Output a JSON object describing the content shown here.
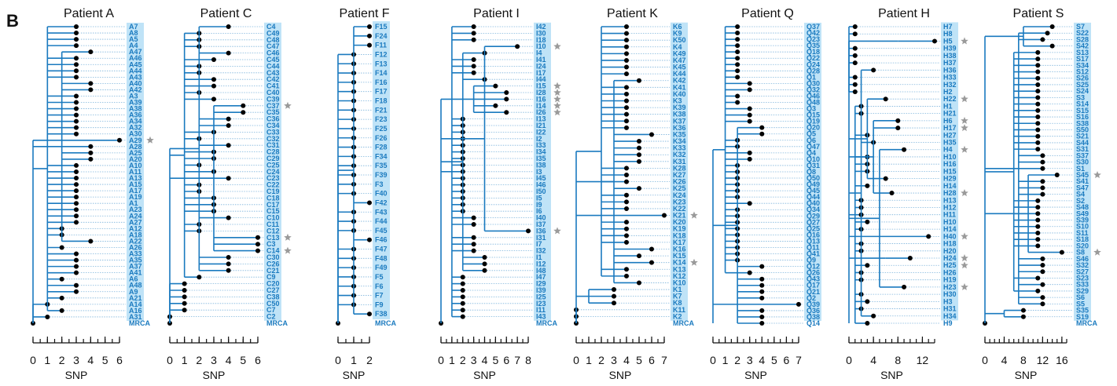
{
  "panel_label": "B",
  "colors": {
    "branch": "#1a7abf",
    "highlight": "#bfe3f7",
    "label": "#1a7abf",
    "star": "#9a9a9a",
    "node": "#000000"
  },
  "chart_data": [
    {
      "type": "tree",
      "title": "Patient A",
      "xlabel": "SNP",
      "xticks": [
        "0",
        "1",
        "2",
        "3",
        "4",
        "5",
        "6"
      ],
      "xlim": [
        0,
        6
      ],
      "leaves": [
        "A7",
        "A8",
        "A5",
        "A4",
        "A47",
        "A46",
        "A45",
        "A44",
        "A43",
        "A40",
        "A42",
        "A3",
        "A39",
        "A38",
        "A36",
        "A34",
        "A32",
        "A30",
        "A29",
        "A28",
        "A25",
        "A20",
        "A10",
        "A11",
        "A13",
        "A15",
        "A17",
        "A19",
        "A1",
        "A23",
        "A24",
        "A27",
        "A12",
        "A18",
        "A22",
        "A26",
        "A33",
        "A35",
        "A37",
        "A41",
        "A6",
        "A48",
        "A9",
        "A21",
        "A14",
        "A16",
        "A31",
        "MRCA"
      ],
      "snp": [
        3,
        3,
        3,
        3,
        4,
        3,
        3,
        3,
        3,
        4,
        4,
        3,
        3,
        3,
        3,
        3,
        3,
        3,
        6,
        4,
        4,
        4,
        3,
        3,
        3,
        3,
        3,
        3,
        3,
        3,
        3,
        3,
        2,
        2,
        4,
        2,
        3,
        3,
        3,
        3,
        2,
        3,
        3,
        2,
        1,
        2,
        1,
        0
      ],
      "stars": [
        "A29"
      ],
      "mrca": 0
    },
    {
      "type": "tree",
      "title": "Patient C",
      "xlabel": "SNP",
      "xticks": [
        "0",
        "1",
        "2",
        "3",
        "4",
        "5",
        "6"
      ],
      "xlim": [
        0,
        6
      ],
      "leaves": [
        "C4",
        "C49",
        "C48",
        "C47",
        "C46",
        "C45",
        "C44",
        "C43",
        "C42",
        "C41",
        "C40",
        "C39",
        "C37",
        "C35",
        "C36",
        "C34",
        "C33",
        "C32",
        "C31",
        "C28",
        "C29",
        "C25",
        "C24",
        "C23",
        "C22",
        "C19",
        "C18",
        "C17",
        "C15",
        "C10",
        "C11",
        "C12",
        "C13",
        "C3",
        "C14",
        "C30",
        "C26",
        "C21",
        "C9",
        "C20",
        "C27",
        "C38",
        "C50",
        "C7",
        "C2",
        "MRCA"
      ],
      "snp": [
        4,
        2,
        2,
        2,
        4,
        3,
        2,
        2,
        3,
        3,
        2,
        3,
        5,
        5,
        4,
        4,
        3,
        2,
        4,
        3,
        3,
        2,
        3,
        4,
        2,
        2,
        3,
        3,
        3,
        4,
        2,
        2,
        6,
        6,
        6,
        4,
        4,
        4,
        2,
        1,
        1,
        1,
        1,
        1,
        0,
        0
      ],
      "stars": [
        "C37",
        "C5",
        "C13",
        "C6",
        "C14"
      ],
      "mrca": 0
    },
    {
      "type": "tree",
      "title": "Patient F",
      "xlabel": "SNP",
      "xticks": [
        "0",
        "1",
        "2"
      ],
      "xlim": [
        0,
        2
      ],
      "leaves": [
        "F15",
        "F24",
        "F11",
        "F12",
        "F13",
        "F14",
        "F16",
        "F17",
        "F18",
        "F21",
        "F23",
        "F25",
        "F26",
        "F28",
        "F34",
        "F35",
        "F39",
        "F3",
        "F40",
        "F42",
        "F43",
        "F44",
        "F45",
        "F46",
        "F47",
        "F48",
        "F49",
        "F5",
        "F6",
        "F7",
        "F9",
        "F38",
        "MRCA"
      ],
      "snp": [
        2,
        2,
        2,
        1,
        1,
        1,
        1,
        1,
        1,
        1,
        1,
        1,
        1,
        1,
        1,
        1,
        1,
        1,
        1,
        2,
        1,
        1,
        1,
        2,
        1,
        1,
        1,
        1,
        1,
        1,
        1,
        2,
        0
      ],
      "stars": [],
      "mrca": 0
    },
    {
      "type": "tree",
      "title": "Patient I",
      "xlabel": "SNP",
      "xticks": [
        "0",
        "1",
        "2",
        "3",
        "4",
        "5",
        "6",
        "7",
        "8"
      ],
      "xlim": [
        0,
        8
      ],
      "leaves": [
        "I42",
        "I30",
        "I18",
        "I10",
        "I4",
        "I41",
        "I24",
        "I17",
        "I44",
        "I15",
        "I28",
        "I16",
        "I14",
        "I26",
        "I13",
        "I21",
        "I22",
        "I2",
        "I33",
        "I34",
        "I35",
        "I38",
        "I3",
        "I45",
        "I46",
        "I50",
        "I5",
        "I9",
        "I6",
        "I40",
        "I37",
        "I36",
        "I31",
        "I7",
        "I32",
        "I1",
        "I12",
        "I48",
        "I47",
        "I29",
        "I39",
        "I25",
        "I23",
        "I11",
        "I43",
        "MRCA"
      ],
      "snp": [
        3,
        3,
        3,
        7,
        4,
        3,
        3,
        3,
        4,
        5,
        6,
        6,
        5,
        6,
        2,
        2,
        2,
        2,
        2,
        2,
        2,
        2,
        2,
        2,
        2,
        2,
        2,
        2,
        2,
        3,
        3,
        8,
        3,
        3,
        3,
        4,
        4,
        4,
        2,
        2,
        2,
        2,
        2,
        2,
        2,
        0
      ],
      "stars": [
        "I10",
        "I15",
        "I28",
        "I16",
        "I14",
        "I26",
        "I36"
      ],
      "mrca": 0
    },
    {
      "type": "tree",
      "title": "Patient K",
      "xlabel": "SNP",
      "xticks": [
        "0",
        "1",
        "2",
        "3",
        "4",
        "5",
        "6",
        "7"
      ],
      "xlim": [
        0,
        7
      ],
      "leaves": [
        "K6",
        "K9",
        "K50",
        "K4",
        "K49",
        "K47",
        "K45",
        "K44",
        "K42",
        "K41",
        "K40",
        "K3",
        "K39",
        "K38",
        "K37",
        "K36",
        "K35",
        "K34",
        "K33",
        "K32",
        "K31",
        "K28",
        "K27",
        "K26",
        "K25",
        "K24",
        "K23",
        "K22",
        "K21",
        "K20",
        "K19",
        "K18",
        "K17",
        "K16",
        "K15",
        "K14",
        "K13",
        "K12",
        "K10",
        "K1",
        "K7",
        "K8",
        "K11",
        "K2",
        "MRCA"
      ],
      "snp": [
        4,
        4,
        4,
        4,
        4,
        4,
        4,
        4,
        5,
        4,
        4,
        4,
        4,
        4,
        4,
        4,
        6,
        5,
        5,
        5,
        5,
        4,
        4,
        4,
        5,
        4,
        4,
        4,
        7,
        4,
        4,
        4,
        4,
        6,
        5,
        6,
        4,
        4,
        5,
        3,
        3,
        3,
        0,
        0,
        0
      ],
      "stars": [
        "K21",
        "K14"
      ],
      "mrca": 0
    },
    {
      "type": "tree",
      "title": "Patient Q",
      "xlabel": "SNP",
      "xticks": [
        "0",
        "1",
        "2",
        "3",
        "4",
        "5",
        "6",
        "7"
      ],
      "xlim": [
        0,
        7
      ],
      "leaves": [
        "Q37",
        "Q42",
        "Q23",
        "Q35",
        "Q18",
        "Q22",
        "Q24",
        "Q28",
        "Q1",
        "Q30",
        "Q32",
        "Q46",
        "Q48",
        "Q3",
        "Q15",
        "Q19",
        "Q20",
        "Q5",
        "Q6",
        "Q47",
        "Q4",
        "Q10",
        "Q31",
        "Q8",
        "Q50",
        "Q49",
        "Q45",
        "Q44",
        "Q40",
        "Q34",
        "Q29",
        "Q27",
        "Q25",
        "Q16",
        "Q13",
        "Q11",
        "Q41",
        "Q9",
        "Q12",
        "Q26",
        "Q43",
        "Q17",
        "Q21",
        "Q2",
        "Q39",
        "Q36",
        "Q38",
        "Q14"
      ],
      "snp": [
        2,
        2,
        2,
        2,
        2,
        2,
        2,
        2,
        2,
        3,
        3,
        2,
        2,
        3,
        3,
        3,
        4,
        4,
        2,
        2,
        3,
        3,
        2,
        2,
        2,
        2,
        2,
        2,
        3,
        2,
        2,
        2,
        2,
        2,
        2,
        2,
        2,
        2,
        4,
        3,
        4,
        4,
        4,
        4,
        7,
        4,
        4,
        4
      ],
      "stars": [
        "Q33"
      ],
      "mrca": 0
    },
    {
      "type": "tree",
      "title": "Patient H",
      "xlabel": "SNP",
      "xticks": [
        "0",
        "4",
        "8",
        "12"
      ],
      "xlim": [
        0,
        14
      ],
      "leaves": [
        "H7",
        "H8",
        "H5",
        "H39",
        "H38",
        "H37",
        "H36",
        "H33",
        "H32",
        "H2",
        "H22",
        "H1",
        "H21",
        "H6",
        "H17",
        "H27",
        "H35",
        "H4",
        "H10",
        "H16",
        "H15",
        "H29",
        "H14",
        "H28",
        "H13",
        "H12",
        "H11",
        "H10",
        "H14",
        "H40",
        "H18",
        "H20",
        "H24",
        "H25",
        "H26",
        "H19",
        "H23",
        "H30",
        "H3",
        "H31",
        "H34",
        "H9"
      ],
      "snp": [
        1,
        1,
        14,
        1,
        1,
        1,
        4,
        1,
        1,
        1,
        6,
        2,
        2,
        8,
        8,
        3,
        4,
        9,
        3,
        3,
        3,
        6,
        3,
        7,
        2,
        2,
        2,
        3,
        2,
        13,
        2,
        2,
        10,
        3,
        2,
        2,
        9,
        2,
        3,
        2,
        4,
        3
      ],
      "stars": [
        "H5",
        "H22",
        "H6",
        "H17",
        "H4",
        "H28",
        "H40",
        "H24",
        "H25",
        "H23"
      ],
      "mrca": 0
    },
    {
      "type": "tree",
      "title": "Patient S",
      "xlabel": "SNP",
      "xticks": [
        "0",
        "4",
        "8",
        "12",
        "16"
      ],
      "xlim": [
        0,
        17
      ],
      "leaves": [
        "S7",
        "S22",
        "S28",
        "S42",
        "S13",
        "S17",
        "S34",
        "S12",
        "S26",
        "S25",
        "S24",
        "S3",
        "S14",
        "S15",
        "S16",
        "S38",
        "S50",
        "S21",
        "S44",
        "S31",
        "S37",
        "S30",
        "S1",
        "S45",
        "S41",
        "S47",
        "S4",
        "S2",
        "S48",
        "S49",
        "S39",
        "S10",
        "S11",
        "S18",
        "S20",
        "S8",
        "S46",
        "S32",
        "S27",
        "S23",
        "S33",
        "S29",
        "S6",
        "S5",
        "S35",
        "S19",
        "MRCA"
      ],
      "snp": [
        14,
        13,
        12,
        14,
        11,
        11,
        11,
        11,
        11,
        11,
        11,
        11,
        11,
        11,
        11,
        11,
        11,
        11,
        11,
        11,
        12,
        12,
        12,
        15,
        12,
        12,
        12,
        11,
        11,
        11,
        11,
        11,
        11,
        11,
        11,
        16,
        12,
        12,
        12,
        11,
        12,
        11,
        12,
        12,
        8,
        8,
        0
      ],
      "stars": [
        "S45",
        "S8"
      ],
      "mrca": 0
    }
  ]
}
